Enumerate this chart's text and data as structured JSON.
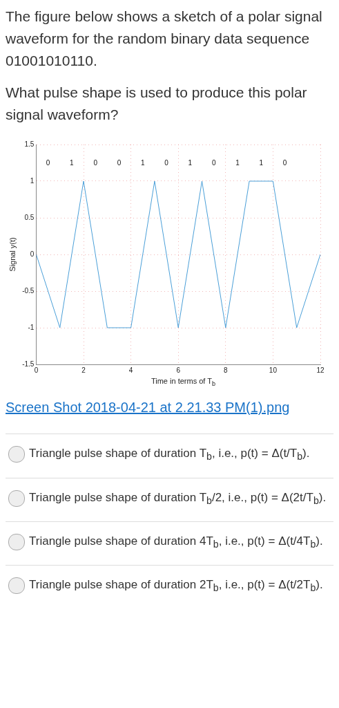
{
  "chart_data": {
    "type": "line",
    "title": "The figure below shows a sketch of a polar signal waveform for the random binary data sequence 01001010110.",
    "subtitle": "What pulse shape is used to produce this polar signal waveform?",
    "xlabel": "Time in terms of T$_{b}$",
    "ylabel": "Signal y(t)",
    "x": [
      0,
      1,
      2,
      3,
      4,
      5,
      6,
      7,
      8,
      9,
      10,
      11,
      12
    ],
    "series": [
      {
        "color": "#4a9fd8",
        "values": [
          0,
          -1,
          1,
          -1,
          -1,
          1,
          -1,
          1,
          -1,
          1,
          1,
          -1,
          0
        ]
      }
    ],
    "xlim": [
      0,
      12
    ],
    "xticks": [
      0,
      2,
      4,
      6,
      8,
      10,
      12
    ],
    "ylim": [
      -1.5,
      1.5
    ],
    "yticks": [
      -1.5,
      -1,
      -0.5,
      0,
      0.5,
      1,
      1.5
    ],
    "grid": true,
    "marker": "none",
    "line_style": "solid",
    "legend": false,
    "annotations": [
      "0 1 0 0 1 0 1 0 1 1 0",
      "Screen Shot 2018-04-21 at 2.21.33 PM(1).png",
      "Triangle pulse shape of duration T$_{b}$, i.e., p(t) = Δ(t/T$_{b}$).",
      "Triangle pulse shape of duration T$_{b}$/2, i.e., p(t) = Δ(2t/T$_{b}$).",
      "Triangle pulse shape of duration 4T$_{b}$, i.e., p(t) = Δ(t/4T$_{b}$).",
      "Triangle pulse shape of duration 2T$_{b}$, i.e., p(t) = Δ(t/2T$_{b}$)."
    ]
  }
}
